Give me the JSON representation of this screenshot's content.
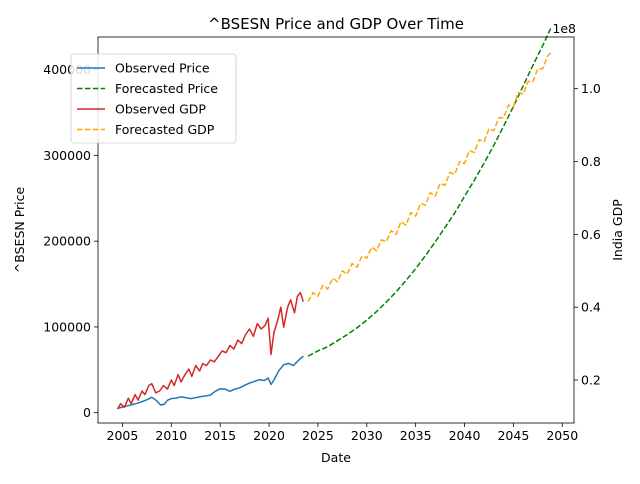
{
  "chart_data": {
    "type": "line",
    "title": "^BSESN Price and GDP Over Time",
    "xlabel": "Date",
    "ylabel_left": "^BSESN Price",
    "ylabel_right": "India GDP",
    "right_axis_offset_label": "1e8",
    "xlim": [
      2002.5,
      2051.2
    ],
    "ylim_left": [
      -12000,
      438000
    ],
    "ylim_right": [
      0.082,
      1.142
    ],
    "x_ticks": [
      2005,
      2010,
      2015,
      2020,
      2025,
      2030,
      2035,
      2040,
      2045,
      2050
    ],
    "x_tick_labels": [
      "2005",
      "2010",
      "2015",
      "2020",
      "2025",
      "2030",
      "2035",
      "2040",
      "2045",
      "2050"
    ],
    "y_left_ticks": [
      0,
      100000,
      200000,
      300000,
      400000
    ],
    "y_left_tick_labels": [
      "0",
      "100000",
      "200000",
      "300000",
      "400000"
    ],
    "y_right_ticks": [
      0.2,
      0.4,
      0.6,
      0.8,
      1.0
    ],
    "y_right_tick_labels": [
      "0.2",
      "0.4",
      "0.6",
      "0.8",
      "1.0"
    ],
    "grid": false,
    "legend_position": "top-left",
    "colors": {
      "observed_price": "#1f77b4",
      "forecasted_price": "#008000",
      "observed_gdp": "#d62728",
      "forecasted_gdp": "#ffa500",
      "left_axis_label": "#1f77b4",
      "right_axis_label": "#d62728"
    },
    "series": [
      {
        "name": "Observed Price",
        "axis": "left",
        "style": "solid",
        "color": "#1f77b4",
        "points": [
          [
            2004.5,
            5000
          ],
          [
            2005.0,
            6500
          ],
          [
            2005.5,
            8000
          ],
          [
            2006.0,
            9500
          ],
          [
            2006.5,
            11000
          ],
          [
            2007.0,
            13000
          ],
          [
            2007.5,
            15000
          ],
          [
            2008.0,
            18000
          ],
          [
            2008.5,
            14000
          ],
          [
            2008.9,
            9000
          ],
          [
            2009.3,
            10000
          ],
          [
            2009.6,
            14500
          ],
          [
            2010.0,
            16500
          ],
          [
            2010.5,
            17000
          ],
          [
            2011.0,
            18500
          ],
          [
            2011.5,
            17500
          ],
          [
            2012.0,
            16500
          ],
          [
            2012.5,
            17500
          ],
          [
            2013.0,
            18800
          ],
          [
            2013.5,
            19500
          ],
          [
            2014.0,
            20500
          ],
          [
            2014.5,
            25000
          ],
          [
            2015.0,
            28000
          ],
          [
            2015.5,
            27500
          ],
          [
            2016.0,
            25000
          ],
          [
            2016.5,
            27500
          ],
          [
            2017.0,
            29000
          ],
          [
            2017.5,
            32000
          ],
          [
            2018.0,
            34500
          ],
          [
            2018.5,
            36500
          ],
          [
            2019.0,
            38500
          ],
          [
            2019.5,
            37500
          ],
          [
            2019.9,
            40500
          ],
          [
            2020.2,
            33000
          ],
          [
            2020.5,
            38000
          ],
          [
            2021.0,
            49000
          ],
          [
            2021.5,
            56000
          ],
          [
            2022.0,
            57500
          ],
          [
            2022.5,
            55000
          ],
          [
            2023.0,
            61000
          ],
          [
            2023.5,
            66000
          ]
        ]
      },
      {
        "name": "Forecasted Price",
        "axis": "left",
        "style": "dashed",
        "color": "#008000",
        "points": [
          [
            2024.0,
            66000
          ],
          [
            2025.0,
            72000
          ],
          [
            2026.0,
            77000
          ],
          [
            2027.0,
            84000
          ],
          [
            2028.0,
            91000
          ],
          [
            2029.0,
            99000
          ],
          [
            2030.0,
            108000
          ],
          [
            2031.0,
            118000
          ],
          [
            2032.0,
            129000
          ],
          [
            2033.0,
            141000
          ],
          [
            2034.0,
            154000
          ],
          [
            2035.0,
            168000
          ],
          [
            2036.0,
            183000
          ],
          [
            2037.0,
            199000
          ],
          [
            2038.0,
            216000
          ],
          [
            2039.0,
            233000
          ],
          [
            2040.0,
            252000
          ],
          [
            2041.0,
            271000
          ],
          [
            2042.0,
            291000
          ],
          [
            2043.0,
            312000
          ],
          [
            2044.0,
            334000
          ],
          [
            2045.0,
            357000
          ],
          [
            2046.0,
            381000
          ],
          [
            2047.0,
            405000
          ],
          [
            2048.0,
            428000
          ],
          [
            2048.9,
            450000
          ]
        ]
      },
      {
        "name": "Observed GDP",
        "axis": "right",
        "style": "solid",
        "color": "#d62728",
        "points": [
          [
            2004.5,
            0.12
          ],
          [
            2004.8,
            0.135
          ],
          [
            2005.2,
            0.125
          ],
          [
            2005.6,
            0.15
          ],
          [
            2005.9,
            0.135
          ],
          [
            2006.3,
            0.16
          ],
          [
            2006.6,
            0.145
          ],
          [
            2007.0,
            0.17
          ],
          [
            2007.3,
            0.16
          ],
          [
            2007.7,
            0.185
          ],
          [
            2008.0,
            0.19
          ],
          [
            2008.4,
            0.165
          ],
          [
            2008.8,
            0.17
          ],
          [
            2009.2,
            0.185
          ],
          [
            2009.6,
            0.175
          ],
          [
            2010.0,
            0.2
          ],
          [
            2010.3,
            0.185
          ],
          [
            2010.7,
            0.215
          ],
          [
            2011.0,
            0.195
          ],
          [
            2011.4,
            0.215
          ],
          [
            2011.8,
            0.23
          ],
          [
            2012.1,
            0.21
          ],
          [
            2012.5,
            0.24
          ],
          [
            2012.9,
            0.225
          ],
          [
            2013.2,
            0.245
          ],
          [
            2013.6,
            0.24
          ],
          [
            2014.0,
            0.255
          ],
          [
            2014.4,
            0.25
          ],
          [
            2014.8,
            0.265
          ],
          [
            2015.2,
            0.28
          ],
          [
            2015.6,
            0.275
          ],
          [
            2016.0,
            0.295
          ],
          [
            2016.4,
            0.285
          ],
          [
            2016.8,
            0.31
          ],
          [
            2017.2,
            0.3
          ],
          [
            2017.6,
            0.325
          ],
          [
            2018.0,
            0.34
          ],
          [
            2018.4,
            0.32
          ],
          [
            2018.8,
            0.355
          ],
          [
            2019.2,
            0.34
          ],
          [
            2019.6,
            0.35
          ],
          [
            2019.9,
            0.37
          ],
          [
            2020.2,
            0.27
          ],
          [
            2020.5,
            0.33
          ],
          [
            2020.9,
            0.365
          ],
          [
            2021.2,
            0.4
          ],
          [
            2021.5,
            0.345
          ],
          [
            2021.9,
            0.4
          ],
          [
            2022.2,
            0.42
          ],
          [
            2022.6,
            0.385
          ],
          [
            2022.9,
            0.43
          ],
          [
            2023.2,
            0.44
          ],
          [
            2023.5,
            0.415
          ]
        ]
      },
      {
        "name": "Forecasted GDP",
        "axis": "right",
        "style": "dashed",
        "color": "#ffa500",
        "points": [
          [
            2024.0,
            0.415
          ],
          [
            2024.5,
            0.44
          ],
          [
            2025.0,
            0.43
          ],
          [
            2025.5,
            0.46
          ],
          [
            2026.0,
            0.45
          ],
          [
            2026.5,
            0.48
          ],
          [
            2027.0,
            0.47
          ],
          [
            2027.5,
            0.5
          ],
          [
            2028.0,
            0.49
          ],
          [
            2028.5,
            0.52
          ],
          [
            2029.0,
            0.51
          ],
          [
            2029.5,
            0.54
          ],
          [
            2030.0,
            0.535
          ],
          [
            2030.5,
            0.565
          ],
          [
            2031.0,
            0.555
          ],
          [
            2031.5,
            0.585
          ],
          [
            2032.0,
            0.58
          ],
          [
            2032.5,
            0.61
          ],
          [
            2033.0,
            0.6
          ],
          [
            2033.5,
            0.635
          ],
          [
            2034.0,
            0.625
          ],
          [
            2034.5,
            0.66
          ],
          [
            2035.0,
            0.65
          ],
          [
            2035.5,
            0.685
          ],
          [
            2036.0,
            0.68
          ],
          [
            2036.5,
            0.715
          ],
          [
            2037.0,
            0.705
          ],
          [
            2037.5,
            0.74
          ],
          [
            2038.0,
            0.735
          ],
          [
            2038.5,
            0.77
          ],
          [
            2039.0,
            0.765
          ],
          [
            2039.5,
            0.8
          ],
          [
            2040.0,
            0.795
          ],
          [
            2040.5,
            0.83
          ],
          [
            2041.0,
            0.825
          ],
          [
            2041.5,
            0.86
          ],
          [
            2042.0,
            0.855
          ],
          [
            2042.5,
            0.89
          ],
          [
            2043.0,
            0.885
          ],
          [
            2043.5,
            0.92
          ],
          [
            2044.0,
            0.92
          ],
          [
            2044.5,
            0.955
          ],
          [
            2045.0,
            0.95
          ],
          [
            2045.5,
            0.99
          ],
          [
            2046.0,
            0.985
          ],
          [
            2046.5,
            1.02
          ],
          [
            2047.0,
            1.02
          ],
          [
            2047.5,
            1.055
          ],
          [
            2048.0,
            1.055
          ],
          [
            2048.5,
            1.09
          ],
          [
            2048.9,
            1.1
          ]
        ]
      }
    ]
  }
}
